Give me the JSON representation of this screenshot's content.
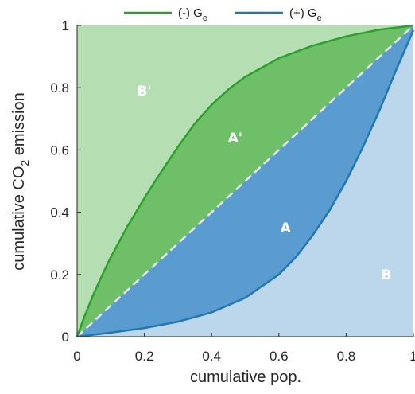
{
  "chart_data": {
    "type": "line",
    "xlabel": "cumulative pop.",
    "ylabel_main": "cumulative CO",
    "ylabel_sub": "2",
    "ylabel_tail": " emission",
    "xlim": [
      0,
      1
    ],
    "ylim": [
      0,
      1
    ],
    "x_ticks": [
      0,
      0.2,
      0.4,
      0.6,
      0.8,
      1
    ],
    "x_tick_labels": [
      "0",
      "0.2",
      "0.4",
      "0.6",
      "0.8",
      "1"
    ],
    "y_ticks": [
      0,
      0.2,
      0.4,
      0.6,
      0.8,
      1
    ],
    "y_tick_labels": [
      "0",
      "0.2",
      "0.4",
      "0.6",
      "0.8",
      "1"
    ],
    "grid": false,
    "legend_position": "top",
    "series": [
      {
        "name_main": "(-) G",
        "name_sub": "e",
        "color": "#2ca02c",
        "fill_color": "#9ed39a",
        "x": [
          0,
          0.02,
          0.05,
          0.08,
          0.1,
          0.15,
          0.2,
          0.25,
          0.3,
          0.35,
          0.4,
          0.45,
          0.5,
          0.6,
          0.7,
          0.8,
          0.9,
          1.0
        ],
        "y": [
          0,
          0.06,
          0.14,
          0.21,
          0.255,
          0.355,
          0.445,
          0.53,
          0.61,
          0.685,
          0.745,
          0.795,
          0.835,
          0.895,
          0.935,
          0.965,
          0.987,
          1.0
        ]
      },
      {
        "name_main": "(+) G",
        "name_sub": "e",
        "color": "#1f77b4",
        "fill_color": "#a6c8e6",
        "x": [
          0,
          0.1,
          0.2,
          0.3,
          0.4,
          0.5,
          0.6,
          0.65,
          0.7,
          0.75,
          0.8,
          0.85,
          0.9,
          0.95,
          1.0
        ],
        "y": [
          0,
          0.013,
          0.028,
          0.048,
          0.078,
          0.125,
          0.2,
          0.255,
          0.325,
          0.405,
          0.5,
          0.61,
          0.73,
          0.86,
          0.985
        ]
      },
      {
        "name_main": "",
        "name_sub": "",
        "color": "#e8e8e8",
        "style": "dashed",
        "x": [
          0,
          1
        ],
        "y": [
          0,
          1
        ]
      }
    ],
    "annotations": [
      {
        "text": "B'",
        "x": 0.2,
        "y": 0.79
      },
      {
        "text": "A'",
        "x": 0.47,
        "y": 0.64
      },
      {
        "text": "A",
        "x": 0.62,
        "y": 0.35
      },
      {
        "text": "B",
        "x": 0.92,
        "y": 0.2
      }
    ]
  }
}
